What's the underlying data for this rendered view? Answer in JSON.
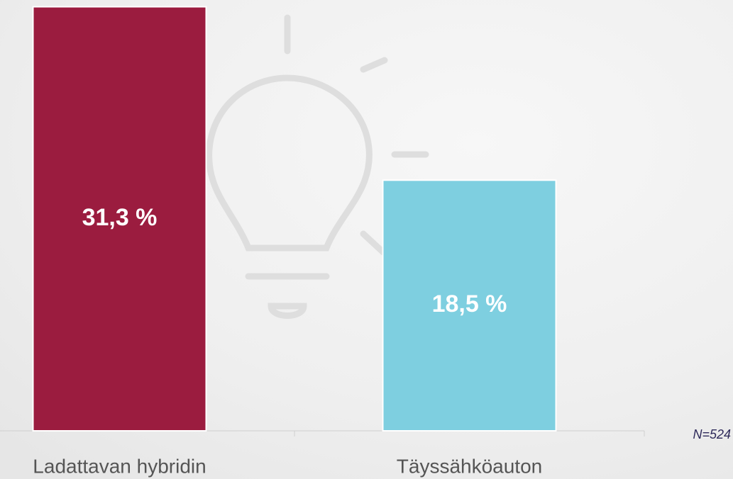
{
  "chart_data": {
    "type": "bar",
    "categories": [
      "Ladattavan hybridin",
      "Täyssähköauton"
    ],
    "values": [
      31.3,
      18.5
    ],
    "value_labels": [
      "31,3 %",
      "18,5 %"
    ],
    "colors": [
      "#9b1c3f",
      "#7ecfe0"
    ],
    "ylim": [
      0,
      31.8
    ],
    "note": "N=524"
  }
}
